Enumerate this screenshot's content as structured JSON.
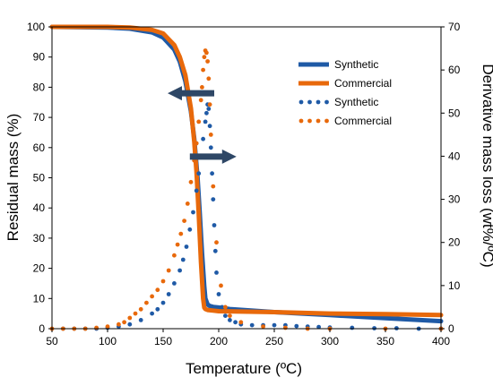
{
  "chart_data": {
    "type": "line",
    "xlabel": "Temperature (ºC)",
    "ylabel": "Residual mass (%)",
    "y2label": "Derivative mass loss (wt%/ºC)",
    "xlim": [
      50,
      400
    ],
    "ylim": [
      0,
      100
    ],
    "y2lim": [
      0,
      70
    ],
    "xticks": [
      "50",
      "100",
      "150",
      "200",
      "250",
      "300",
      "350",
      "400"
    ],
    "yticks": [
      "0",
      "10",
      "20",
      "30",
      "40",
      "50",
      "60",
      "70",
      "80",
      "90",
      "100"
    ],
    "y2ticks": [
      "0",
      "10",
      "20",
      "30",
      "40",
      "50",
      "60",
      "70"
    ],
    "grid": false,
    "legend_position": "top-right",
    "series": [
      {
        "name": "Synthetic",
        "axis": "left",
        "style": "solid",
        "color": "#1f5aa6",
        "x": [
          50,
          100,
          120,
          140,
          150,
          160,
          165,
          170,
          175,
          178,
          181,
          183,
          185,
          187,
          188,
          190,
          192,
          195,
          200,
          210,
          250,
          300,
          350,
          400
        ],
        "y": [
          100,
          99.8,
          99.4,
          98.2,
          96.5,
          92.5,
          88.5,
          82,
          72,
          63,
          50,
          38,
          25,
          14,
          10,
          8,
          7.5,
          7.2,
          7,
          6.5,
          5.5,
          4.5,
          3.5,
          2.5
        ]
      },
      {
        "name": "Commercial",
        "axis": "left",
        "style": "solid",
        "color": "#e8690b",
        "x": [
          50,
          100,
          120,
          140,
          150,
          160,
          165,
          170,
          175,
          178,
          180,
          182,
          184,
          186,
          187,
          188,
          190,
          195,
          200,
          250,
          300,
          350,
          400
        ],
        "y": [
          100,
          100,
          99.8,
          99,
          97.8,
          94,
          90,
          84,
          73,
          62,
          52,
          38,
          22,
          10,
          7,
          6.5,
          6.2,
          6,
          5.8,
          5.5,
          5,
          4.8,
          4.5
        ]
      },
      {
        "name": "Synthetic",
        "axis": "right",
        "style": "dotted",
        "color": "#1f5aa6",
        "x": [
          60,
          70,
          80,
          90,
          100,
          110,
          120,
          130,
          140,
          145,
          150,
          155,
          160,
          165,
          168,
          171,
          174,
          177,
          180,
          182,
          184,
          186,
          188,
          189,
          190,
          191,
          192,
          193,
          194,
          195,
          196,
          197,
          198,
          200,
          203,
          206,
          210,
          215,
          220,
          230,
          240,
          250,
          260,
          270,
          280,
          290,
          300,
          320,
          340,
          360,
          380,
          400
        ],
        "y": [
          0,
          0,
          0,
          0,
          0.2,
          0.5,
          1,
          2,
          3.5,
          4.5,
          6,
          8,
          10.5,
          13.5,
          16,
          19,
          23,
          27,
          32,
          36,
          40,
          44,
          48,
          50,
          52,
          51,
          47,
          42,
          36,
          30,
          24,
          18,
          13,
          8,
          5,
          3,
          2,
          1.5,
          1,
          0.8,
          0.8,
          0.8,
          0.8,
          0.6,
          0.5,
          0.4,
          0.3,
          0.2,
          0.1,
          0.1,
          0,
          0
        ]
      },
      {
        "name": "Commercial",
        "axis": "right",
        "style": "dotted",
        "color": "#e8690b",
        "x": [
          50,
          60,
          70,
          80,
          90,
          100,
          110,
          115,
          120,
          125,
          130,
          135,
          140,
          145,
          150,
          155,
          160,
          163,
          166,
          169,
          172,
          175,
          178,
          180,
          182,
          184,
          185,
          186,
          187,
          188,
          189,
          190,
          191,
          192,
          193,
          195,
          198,
          202,
          206,
          210,
          220,
          240,
          260,
          280,
          300,
          350,
          400
        ],
        "y": [
          0,
          0,
          0,
          0,
          0.2,
          0.5,
          1,
          1.5,
          2.5,
          3.5,
          4.5,
          6,
          7.5,
          9,
          11,
          13.5,
          17,
          19.5,
          22,
          25,
          29,
          34,
          39,
          43,
          48,
          53,
          56,
          60,
          63,
          64.5,
          64,
          62,
          58,
          52,
          45,
          33,
          20,
          10,
          5,
          3,
          1.5,
          0.5,
          0.2,
          0,
          0,
          0,
          0
        ]
      }
    ],
    "annotations": [
      {
        "type": "arrow",
        "direction": "left",
        "x": 175,
        "y": 78,
        "points_to": "left-axis"
      },
      {
        "type": "arrow",
        "direction": "right",
        "x": 195,
        "y": 57,
        "points_to": "right-axis"
      }
    ]
  }
}
